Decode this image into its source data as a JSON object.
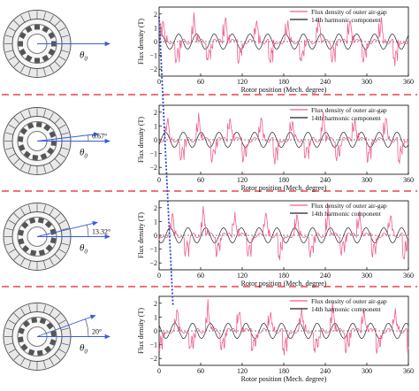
{
  "colors": {
    "flux": "#f0608a",
    "harmonic": "#222222",
    "separator": "#e8464a",
    "arrow": "#3a5fd9",
    "connector": "#2a44c0",
    "motor_line": "#555555"
  },
  "rows": [
    {
      "angle_label": "",
      "theta_label": "θ",
      "theta_sub": "0",
      "chart_data": {
        "type": "line",
        "xlabel": "Rotor position (Mech. degree)",
        "ylabel": "Flux density (T)",
        "xlim": [
          0,
          360
        ],
        "ylim": [
          -2.5,
          2.5
        ],
        "xticks": [
          0,
          60,
          120,
          180,
          240,
          300,
          360
        ],
        "yticks": [
          -2,
          -1,
          0,
          1,
          2
        ],
        "tick_labels_x": [
          "0",
          "60",
          "120",
          "180",
          "240",
          "300",
          "360"
        ],
        "tick_labels_y": [
          "−2",
          "−1",
          "0",
          "1",
          "2"
        ],
        "legend_position": "top-right",
        "series": [
          {
            "name": "Flux density of outer air-gap",
            "phase": 0
          },
          {
            "name": "14th harmonic component",
            "amplitude": 0.55,
            "order": 14,
            "phase": 0
          }
        ]
      }
    },
    {
      "angle_label": "6.67°",
      "theta_label": "θ",
      "theta_sub": "0",
      "chart_data": {
        "type": "line",
        "xlabel": "Rotor position (Mech. degree)",
        "ylabel": "Flux density (T)",
        "xlim": [
          0,
          360
        ],
        "ylim": [
          -2.5,
          2.5
        ],
        "xticks": [
          0,
          60,
          120,
          180,
          240,
          300,
          360
        ],
        "yticks": [
          -2,
          -1,
          0,
          1,
          2
        ],
        "tick_labels_x": [
          "0",
          "60",
          "120",
          "180",
          "240",
          "300",
          "360"
        ],
        "tick_labels_y": [
          "−2",
          "−1",
          "0",
          "1",
          "2"
        ],
        "legend_position": "top-right",
        "series": [
          {
            "name": "Flux density of outer air-gap",
            "phase": 6.67
          },
          {
            "name": "14th harmonic component",
            "amplitude": 0.55,
            "order": 14,
            "phase": 6.67
          }
        ]
      }
    },
    {
      "angle_label": "13.32°",
      "theta_label": "θ",
      "theta_sub": "0",
      "chart_data": {
        "type": "line",
        "xlabel": "Rotor position (Mech. degree)",
        "ylabel": "Flux density (T)",
        "xlim": [
          0,
          360
        ],
        "ylim": [
          -2.5,
          2.5
        ],
        "xticks": [
          0,
          60,
          120,
          180,
          240,
          300,
          360
        ],
        "yticks": [
          -2,
          -1,
          0,
          1,
          2
        ],
        "tick_labels_x": [
          "0",
          "60",
          "120",
          "180",
          "240",
          "300",
          "360"
        ],
        "tick_labels_y": [
          "−2",
          "−1",
          "0",
          "1",
          "2"
        ],
        "legend_position": "top-right",
        "series": [
          {
            "name": "Flux density of outer air-gap",
            "phase": 13.32
          },
          {
            "name": "14th harmonic component",
            "amplitude": 0.55,
            "order": 14,
            "phase": 13.32
          }
        ]
      }
    },
    {
      "angle_label": "20°",
      "theta_label": "θ",
      "theta_sub": "0",
      "chart_data": {
        "type": "line",
        "xlabel": "Rotor position (Mech. degree)",
        "ylabel": "Flux density (T)",
        "xlim": [
          0,
          360
        ],
        "ylim": [
          -2.5,
          2.5
        ],
        "xticks": [
          0,
          60,
          120,
          180,
          240,
          300,
          360
        ],
        "yticks": [
          -2,
          -1,
          0,
          1,
          2
        ],
        "tick_labels_x": [
          "0",
          "60",
          "120",
          "180",
          "240",
          "300",
          "360"
        ],
        "tick_labels_y": [
          "−2",
          "−1",
          "0",
          "1",
          "2"
        ],
        "legend_position": "top-right",
        "series": [
          {
            "name": "Flux density of outer air-gap",
            "phase": 20
          },
          {
            "name": "14th harmonic component",
            "amplitude": 0.55,
            "order": 14,
            "phase": 20
          }
        ]
      }
    }
  ]
}
